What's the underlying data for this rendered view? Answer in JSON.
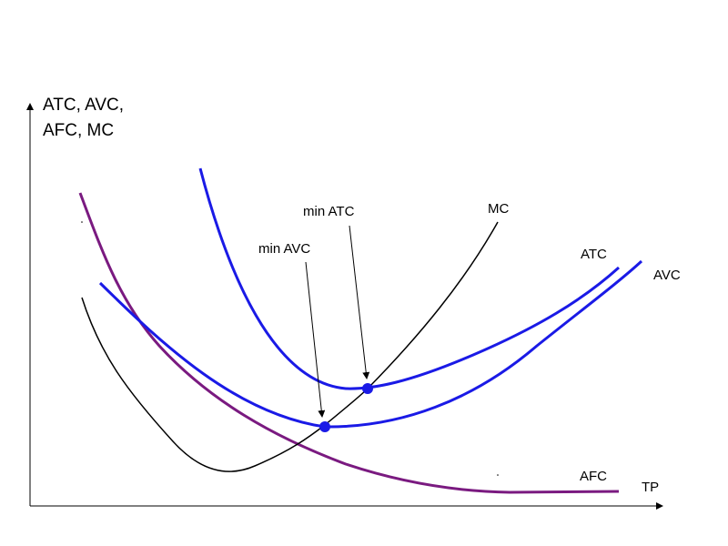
{
  "axes": {
    "y_label_line1": "ATC, AVC,",
    "y_label_line2": "AFC, MC",
    "x_label": "TP"
  },
  "curves": {
    "mc": "MC",
    "atc": "ATC",
    "avc": "AVC",
    "afc": "AFC"
  },
  "annotations": {
    "min_atc": "min ATC",
    "min_avc": "min AVC"
  },
  "colors": {
    "atc": "#1a1ae6",
    "avc": "#1a1ae6",
    "afc": "#7a1a80",
    "mc": "#000000",
    "points": "#1a1ae6"
  }
}
